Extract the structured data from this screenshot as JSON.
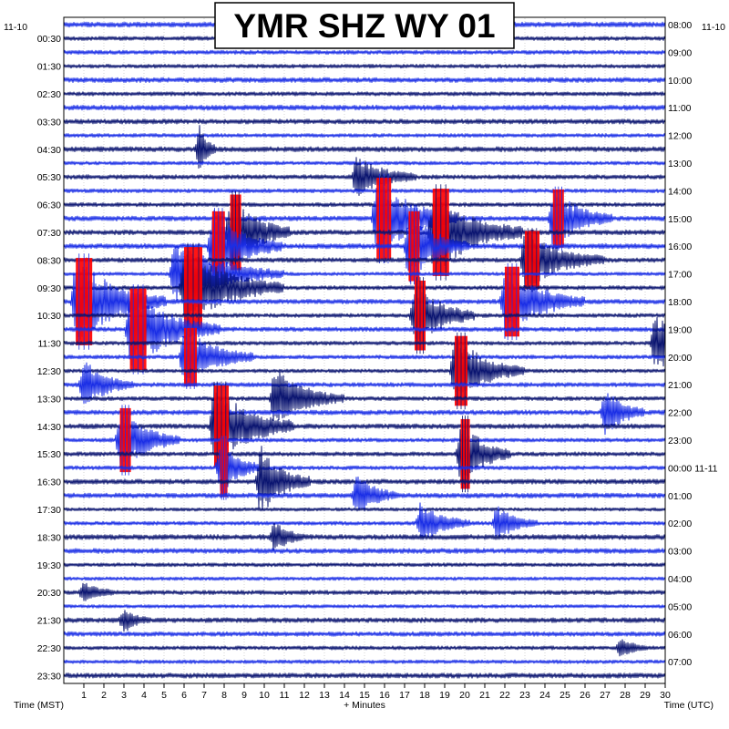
{
  "chart_data": {
    "type": "helicorder",
    "title": "YMR SHZ WY 01",
    "left_date": "11-10",
    "right_date": "11-10",
    "left_time_labels": [
      "00:30",
      "01:30",
      "02:30",
      "03:30",
      "04:30",
      "05:30",
      "06:30",
      "07:30",
      "08:30",
      "09:30",
      "10:30",
      "11:30",
      "12:30",
      "13:30",
      "14:30",
      "15:30",
      "16:30",
      "17:30",
      "18:30",
      "19:30",
      "20:30",
      "21:30",
      "22:30",
      "23:30"
    ],
    "right_time_labels": [
      "08:00",
      "09:00",
      "10:00",
      "11:00",
      "12:00",
      "13:00",
      "14:00",
      "15:00",
      "16:00",
      "17:00",
      "18:00",
      "19:00",
      "20:00",
      "21:00",
      "22:00",
      "23:00",
      "00:00 11-11",
      "01:00",
      "02:00",
      "03:00",
      "04:00",
      "05:00",
      "06:00",
      "07:00"
    ],
    "x_ticks": [
      "1",
      "2",
      "3",
      "4",
      "5",
      "6",
      "7",
      "8",
      "9",
      "10",
      "11",
      "12",
      "13",
      "14",
      "15",
      "16",
      "17",
      "18",
      "19",
      "20",
      "21",
      "22",
      "23",
      "24",
      "25",
      "26",
      "27",
      "28",
      "29",
      "30"
    ],
    "xlabel": "+ Minutes",
    "left_axis_label": "Time (MST)",
    "right_axis_label": "Time (UTC)",
    "x_range_minutes": [
      0,
      30
    ],
    "traces_per_hour": 2,
    "trace_count": 48,
    "grid": true,
    "colors": {
      "trace_dark": "#0a1470",
      "trace_light": "#1a2ee6",
      "clipped": "#ff0000",
      "grid": "#b8b8b8",
      "axis": "#000000"
    },
    "events": [
      {
        "trace": 9,
        "minute": 6.8,
        "amp": 1.8,
        "dur": 0.3
      },
      {
        "trace": 11,
        "minute": 14.6,
        "amp": 1.5,
        "dur": 1.2
      },
      {
        "trace": 14,
        "minute": 15.6,
        "amp": 2.8,
        "dur": 1.6,
        "clip": true
      },
      {
        "trace": 14,
        "minute": 24.4,
        "amp": 2.0,
        "dur": 1.2,
        "clip": true
      },
      {
        "trace": 15,
        "minute": 18.4,
        "amp": 3.0,
        "dur": 1.8,
        "clip": true
      },
      {
        "trace": 15,
        "minute": 8.3,
        "amp": 2.6,
        "dur": 1.2,
        "clip": true
      },
      {
        "trace": 16,
        "minute": 7.4,
        "amp": 2.4,
        "dur": 1.4,
        "clip": true
      },
      {
        "trace": 16,
        "minute": 17.2,
        "amp": 2.4,
        "dur": 1.2,
        "clip": true
      },
      {
        "trace": 17,
        "minute": 23.0,
        "amp": 2.0,
        "dur": 1.6,
        "clip": true
      },
      {
        "trace": 18,
        "minute": 5.5,
        "amp": 2.2,
        "dur": 2.2
      },
      {
        "trace": 19,
        "minute": 6.0,
        "amp": 2.8,
        "dur": 2.0,
        "clip": true
      },
      {
        "trace": 20,
        "minute": 0.6,
        "amp": 3.0,
        "dur": 1.8,
        "clip": true
      },
      {
        "trace": 20,
        "minute": 22.0,
        "amp": 2.4,
        "dur": 1.6,
        "clip": true
      },
      {
        "trace": 21,
        "minute": 17.5,
        "amp": 2.4,
        "dur": 1.2,
        "clip": true
      },
      {
        "trace": 22,
        "minute": 3.3,
        "amp": 2.8,
        "dur": 1.8,
        "clip": true
      },
      {
        "trace": 23,
        "minute": 29.5,
        "amp": 2.0,
        "dur": 1.4
      },
      {
        "trace": 24,
        "minute": 6.0,
        "amp": 2.0,
        "dur": 1.4,
        "clip": true
      },
      {
        "trace": 25,
        "minute": 19.5,
        "amp": 2.4,
        "dur": 1.4,
        "clip": true
      },
      {
        "trace": 26,
        "minute": 1.0,
        "amp": 1.6,
        "dur": 1.0
      },
      {
        "trace": 27,
        "minute": 10.5,
        "amp": 2.0,
        "dur": 1.4
      },
      {
        "trace": 28,
        "minute": 27.0,
        "amp": 1.6,
        "dur": 0.8
      },
      {
        "trace": 29,
        "minute": 7.5,
        "amp": 2.8,
        "dur": 1.6,
        "clip": true
      },
      {
        "trace": 30,
        "minute": 2.8,
        "amp": 2.2,
        "dur": 1.2,
        "clip": true
      },
      {
        "trace": 31,
        "minute": 19.8,
        "amp": 2.4,
        "dur": 1.0,
        "clip": true
      },
      {
        "trace": 32,
        "minute": 7.8,
        "amp": 2.0,
        "dur": 0.8,
        "clip": true
      },
      {
        "trace": 33,
        "minute": 9.8,
        "amp": 2.4,
        "dur": 1.0
      },
      {
        "trace": 34,
        "minute": 14.6,
        "amp": 1.4,
        "dur": 0.8
      },
      {
        "trace": 36,
        "minute": 17.8,
        "amp": 1.4,
        "dur": 1.0
      },
      {
        "trace": 36,
        "minute": 21.6,
        "amp": 1.2,
        "dur": 0.8
      },
      {
        "trace": 37,
        "minute": 10.5,
        "amp": 1.0,
        "dur": 0.6
      },
      {
        "trace": 41,
        "minute": 1.0,
        "amp": 0.7,
        "dur": 0.6
      },
      {
        "trace": 43,
        "minute": 3.0,
        "amp": 0.8,
        "dur": 0.5
      },
      {
        "trace": 45,
        "minute": 27.8,
        "amp": 0.7,
        "dur": 0.5
      }
    ]
  }
}
